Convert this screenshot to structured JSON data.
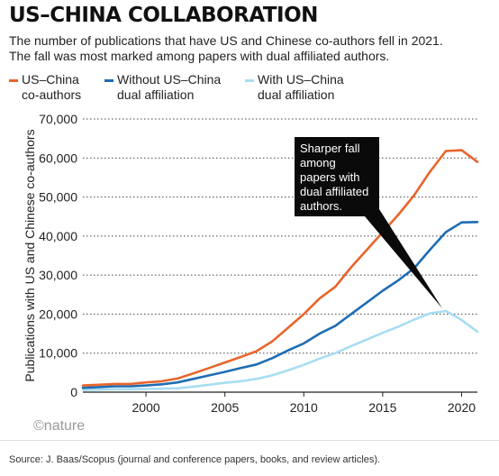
{
  "header": {
    "title": "US–CHINA COLLABORATION",
    "subtitle_lines": [
      "The number of publications that have US and Chinese co-authors fell in 2021.",
      "The fall was most marked among papers with dual affiliated authors."
    ]
  },
  "legend": [
    {
      "lines": [
        "US–China",
        "co-authors"
      ],
      "color": "#e8652c"
    },
    {
      "lines": [
        "Without US–China",
        "dual affiliation"
      ],
      "color": "#1f6db3"
    },
    {
      "lines": [
        "With US–China",
        "dual affiliation"
      ],
      "color": "#a7ddf2"
    }
  ],
  "callout": {
    "lines": [
      "Sharper fall",
      "among",
      "papers with",
      "dual affiliated",
      "authors."
    ]
  },
  "footer": {
    "logo": "©nature",
    "source": "Source: J. Baas/Scopus (journal and conference papers, books, and review articles)."
  },
  "chart_data": {
    "type": "line",
    "title": "US–CHINA COLLABORATION",
    "ylabel": "Publications with US and Chinese co-authors",
    "xlabel": "",
    "xlim": [
      1996,
      2021
    ],
    "ylim": [
      0,
      70000
    ],
    "x_ticks": [
      2000,
      2005,
      2010,
      2015,
      2020
    ],
    "x_tick_labels": [
      "2000",
      "2005",
      "2010",
      "2015",
      "2020"
    ],
    "y_ticks": [
      0,
      10000,
      20000,
      30000,
      40000,
      50000,
      60000,
      70000
    ],
    "y_tick_labels": [
      "0",
      "10,000",
      "20,000",
      "30,000",
      "40,000",
      "50,000",
      "60,000",
      "70,000"
    ],
    "grid": "horizontal dotted",
    "legend_position": "top",
    "x": [
      1996,
      1997,
      1998,
      1999,
      2000,
      2001,
      2002,
      2003,
      2004,
      2005,
      2006,
      2007,
      2008,
      2009,
      2010,
      2011,
      2012,
      2013,
      2014,
      2015,
      2016,
      2017,
      2018,
      2019,
      2020,
      2021
    ],
    "series": [
      {
        "name": "US–China co-authors",
        "color": "#e8652c",
        "values": [
          1700,
          1900,
          2100,
          2100,
          2500,
          2800,
          3500,
          4800,
          6200,
          7600,
          9000,
          10500,
          13000,
          16500,
          20000,
          24000,
          27000,
          32000,
          36500,
          41000,
          45500,
          50500,
          56500,
          61800,
          62000,
          59000
        ]
      },
      {
        "name": "Without US–China dual affiliation",
        "color": "#1f6db3",
        "values": [
          1100,
          1300,
          1500,
          1500,
          1700,
          2000,
          2500,
          3400,
          4300,
          5200,
          6200,
          7100,
          8700,
          10700,
          12500,
          15000,
          17000,
          20000,
          23000,
          26000,
          28700,
          31800,
          36500,
          41000,
          43500,
          43600
        ]
      },
      {
        "name": "With US–China dual affiliation",
        "color": "#a7ddf2",
        "values": [
          600,
          650,
          750,
          750,
          800,
          900,
          1000,
          1400,
          1900,
          2400,
          2800,
          3400,
          4300,
          5600,
          7000,
          8600,
          10000,
          11800,
          13500,
          15200,
          16800,
          18600,
          20200,
          20800,
          18500,
          15500
        ]
      }
    ]
  }
}
